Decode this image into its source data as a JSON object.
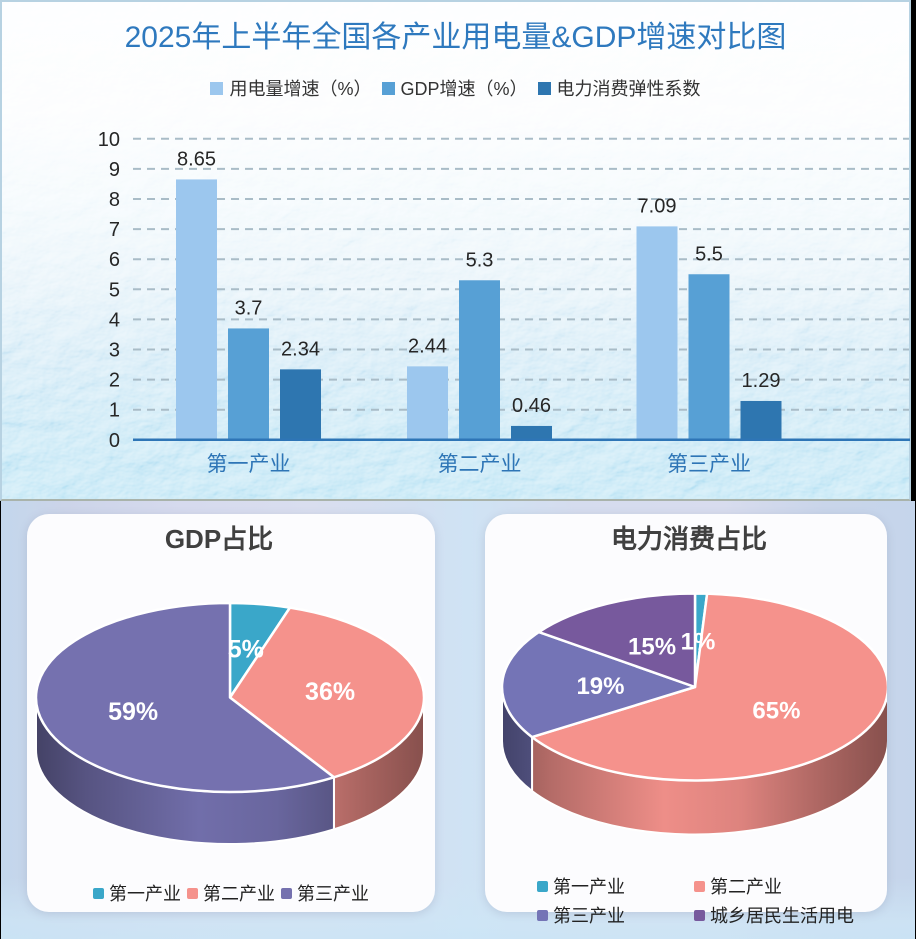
{
  "chart_data": [
    {
      "type": "bar",
      "title": "2025年上半年全国各产业用电量&GDP增速对比图",
      "title_color": "#2e79be",
      "categories": [
        "第一产业",
        "第二产业",
        "第三产业"
      ],
      "series": [
        {
          "name": "用电量增速（%）",
          "color": "#9cc7ee",
          "values": [
            8.65,
            2.44,
            7.09
          ]
        },
        {
          "name": "GDP增速（%）",
          "color": "#57a0d5",
          "values": [
            3.7,
            5.3,
            5.5
          ]
        },
        {
          "name": "电力消费弹性系数",
          "color": "#2e76b0",
          "values": [
            2.34,
            0.46,
            1.29
          ]
        }
      ],
      "value_labels": [
        [
          "8.65",
          "2.44",
          "7.09"
        ],
        [
          "3.7",
          "5.3",
          "5.5"
        ],
        [
          "2.34",
          "0.46",
          "1.29"
        ]
      ],
      "ylim": [
        0,
        10
      ],
      "yticks": [
        0,
        1,
        2,
        3,
        4,
        5,
        6,
        7,
        8,
        9,
        10
      ],
      "grid": true,
      "grid_style": "dashed",
      "legend_position": "top",
      "axis_color": "#2e75b6",
      "category_label_color": "#2e75b6",
      "tick_label_color": "#262626",
      "value_label_color": "#262626"
    },
    {
      "type": "pie",
      "title": "GDP占比",
      "labels": [
        "第一产业",
        "第二产业",
        "第三产业"
      ],
      "values": [
        5,
        36,
        59
      ],
      "value_labels": [
        "5%",
        "36%",
        "59%"
      ],
      "colors": [
        "#3aa7c9",
        "#f5928c",
        "#7571af"
      ],
      "label_color": "#ffffff",
      "effect": "3d",
      "legend_position": "bottom"
    },
    {
      "type": "pie",
      "title": "电力消费占比",
      "labels": [
        "第一产业",
        "第二产业",
        "第三产业",
        "城乡居民生活用电"
      ],
      "values": [
        1,
        65,
        19,
        15
      ],
      "value_labels": [
        "1%",
        "65%",
        "19%",
        "15%"
      ],
      "colors": [
        "#3aa7c9",
        "#f5928c",
        "#7474b6",
        "#77599d"
      ],
      "label_color": "#ffffff",
      "effect": "3d",
      "legend_position": "bottom"
    }
  ]
}
